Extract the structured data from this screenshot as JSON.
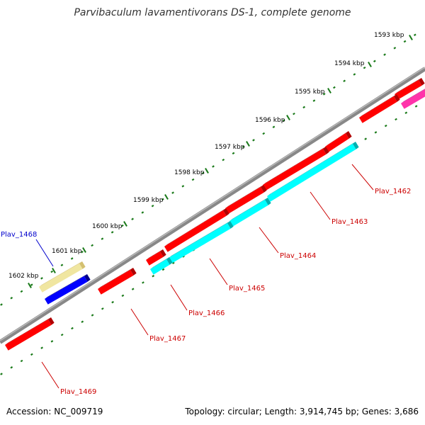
{
  "title": "Parvibaculum lavamentivorans DS-1, complete genome",
  "footer": {
    "accession": "Accession: NC_009719",
    "summary": "Topology: circular; Length: 3,914,745 bp; Genes: 3,686"
  },
  "kbp_labels": [
    "1593 kbp",
    "1594 kbp",
    "1595 kbp",
    "1596 kbp",
    "1597 kbp",
    "1598 kbp",
    "1599 kbp",
    "1600 kbp",
    "1601 kbp",
    "1602 kbp"
  ],
  "gene_labels": [
    {
      "name": "Plav_1462",
      "color": "#cc0000"
    },
    {
      "name": "Plav_1463",
      "color": "#cc0000"
    },
    {
      "name": "Plav_1464",
      "color": "#cc0000"
    },
    {
      "name": "Plav_1465",
      "color": "#cc0000"
    },
    {
      "name": "Plav_1466",
      "color": "#cc0000"
    },
    {
      "name": "Plav_1467",
      "color": "#cc0000"
    },
    {
      "name": "Plav_1468",
      "color": "#0000cc"
    },
    {
      "name": "Plav_1469",
      "color": "#cc0000"
    }
  ],
  "colors": {
    "forward_gene": "#ff0000",
    "reverse_gene": "#00ffff",
    "plav_1468": "#0000ff",
    "pale_feature": "#f0e6a0",
    "magenta_feature": "#ff33aa",
    "backbone": "#777777",
    "tick": "#1a7a1a"
  }
}
